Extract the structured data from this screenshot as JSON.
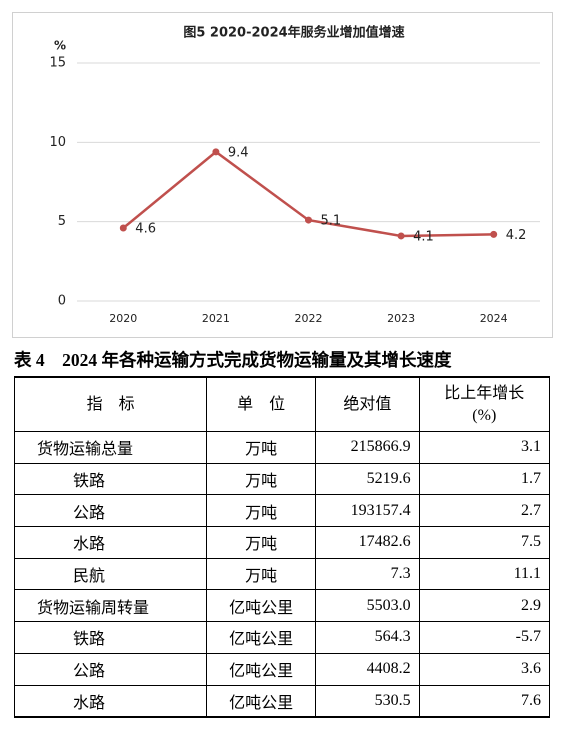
{
  "chart_data": {
    "type": "line",
    "title": "图5  2020-2024年服务业增加值增速",
    "y_label": "%",
    "categories": [
      "2020",
      "2021",
      "2022",
      "2023",
      "2024"
    ],
    "values": [
      4.6,
      9.4,
      5.1,
      4.1,
      4.2
    ],
    "color": "#c0504d",
    "ylim": [
      0,
      15
    ],
    "yticks": [
      0,
      5,
      10,
      15
    ],
    "grid": true
  },
  "table": {
    "title": "表 4　2024 年各种运输方式完成货物运输量及其增长速度",
    "headers": [
      "指　标",
      "单　位",
      "绝对值",
      "比上年增长\n(%)"
    ],
    "rows": [
      [
        "货物运输总量",
        "万吨",
        "215866.9",
        "3.1"
      ],
      [
        "铁路",
        "万吨",
        "5219.6",
        "1.7"
      ],
      [
        "公路",
        "万吨",
        "193157.4",
        "2.7"
      ],
      [
        "水路",
        "万吨",
        "17482.6",
        "7.5"
      ],
      [
        "民航",
        "万吨",
        "7.3",
        "11.1"
      ],
      [
        "货物运输周转量",
        "亿吨公里",
        "5503.0",
        "2.9"
      ],
      [
        "铁路",
        "亿吨公里",
        "564.3",
        "-5.7"
      ],
      [
        "公路",
        "亿吨公里",
        "4408.2",
        "3.6"
      ],
      [
        "水路",
        "亿吨公里",
        "530.5",
        "7.6"
      ]
    ]
  }
}
